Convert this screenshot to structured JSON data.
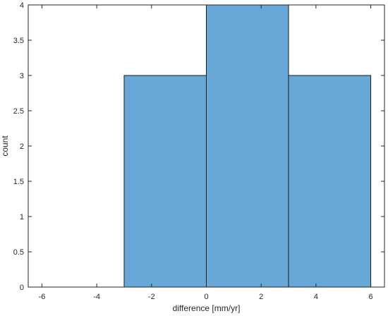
{
  "chart_data": {
    "type": "bar",
    "subtype": "histogram",
    "bins": [
      {
        "x0": -3,
        "x1": 0,
        "count": 3
      },
      {
        "x0": 0,
        "x1": 3,
        "count": 4
      },
      {
        "x0": 3,
        "x1": 6,
        "count": 3
      }
    ],
    "xlabel": "difference [mm/yr]",
    "ylabel": "count",
    "xlim": [
      -6.5,
      6.5
    ],
    "ylim": [
      0,
      4
    ],
    "xticks": [
      -6,
      -4,
      -2,
      0,
      2,
      4,
      6
    ],
    "yticks": [
      0,
      0.5,
      1,
      1.5,
      2,
      2.5,
      3,
      3.5,
      4
    ],
    "xtick_labels": [
      "-6",
      "-4",
      "-2",
      "0",
      "2",
      "4",
      "6"
    ],
    "ytick_labels": [
      "0",
      "0.5",
      "1",
      "1.5",
      "2",
      "2.5",
      "3",
      "3.5",
      "4"
    ],
    "bar_color": "#67a8d8",
    "edge_color": "#1a1a1a",
    "grid": false
  }
}
